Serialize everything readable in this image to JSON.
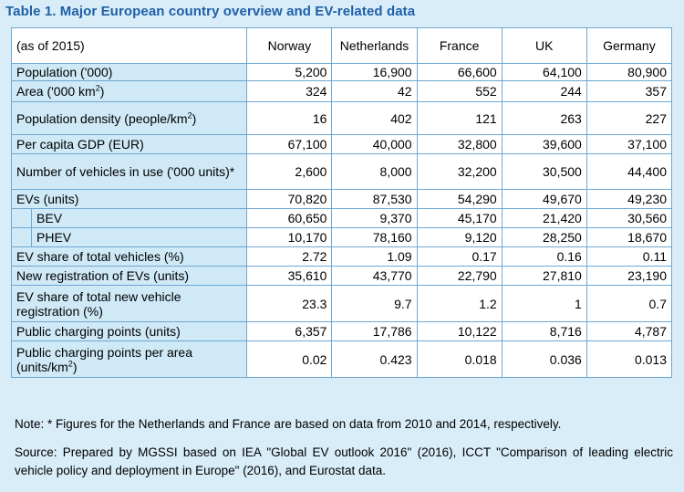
{
  "title": "Table 1.  Major European country overview and EV-related data",
  "header": {
    "as_of": "(as of 2015)",
    "countries": [
      "Norway",
      "Netherlands",
      "France",
      "UK",
      "Germany"
    ]
  },
  "rows": [
    {
      "label": "Population ('000)",
      "values": [
        "5,200",
        "16,900",
        "66,600",
        "64,100",
        "80,900"
      ]
    },
    {
      "label": "Area ('000 km",
      "sup": "2",
      "suffix": ")",
      "values": [
        "324",
        "42",
        "552",
        "244",
        "357"
      ]
    },
    {
      "label": "Population density (people/km",
      "sup": "2",
      "suffix": ")",
      "values": [
        "16",
        "402",
        "121",
        "263",
        "227"
      ]
    },
    {
      "label": "Per capita GDP (EUR)",
      "values": [
        "67,100",
        "40,000",
        "32,800",
        "39,600",
        "37,100"
      ]
    },
    {
      "label": "Number of vehicles in use ('000 units)*",
      "values": [
        "2,600",
        "8,000",
        "32,200",
        "30,500",
        "44,400"
      ]
    },
    {
      "label": "EVs (units)",
      "values": [
        "70,820",
        "87,530",
        "54,290",
        "49,670",
        "49,230"
      ]
    },
    {
      "label": "BEV",
      "indent": true,
      "values": [
        "60,650",
        "9,370",
        "45,170",
        "21,420",
        "30,560"
      ]
    },
    {
      "label": "PHEV",
      "indent": true,
      "values": [
        "10,170",
        "78,160",
        "9,120",
        "28,250",
        "18,670"
      ]
    },
    {
      "label": "EV share of total vehicles (%)",
      "values": [
        "2.72",
        "1.09",
        "0.17",
        "0.16",
        "0.11"
      ]
    },
    {
      "label": "New registration of EVs (units)",
      "values": [
        "35,610",
        "43,770",
        "22,790",
        "27,810",
        "23,190"
      ]
    },
    {
      "label": "EV share of total new vehicle registration (%)",
      "values": [
        "23.3",
        "9.7",
        "1.2",
        "1",
        "0.7"
      ]
    },
    {
      "label": "Public charging points (units)",
      "values": [
        "6,357",
        "17,786",
        "10,122",
        "8,716",
        "4,787"
      ]
    },
    {
      "label": "Public charging points per area (units/km",
      "sup": "2",
      "suffix": ")",
      "values": [
        "0.02",
        "0.423",
        "0.018",
        "0.036",
        "0.013"
      ]
    }
  ],
  "note": "Note: * Figures for the Netherlands and France are based on data from 2010 and 2014, respectively.",
  "source": "Source: Prepared by MGSSI based on IEA \"Global EV outlook 2016\" (2016), ICCT \"Comparison of leading electric vehicle policy and deployment in Europe\" (2016), and Eurostat data."
}
